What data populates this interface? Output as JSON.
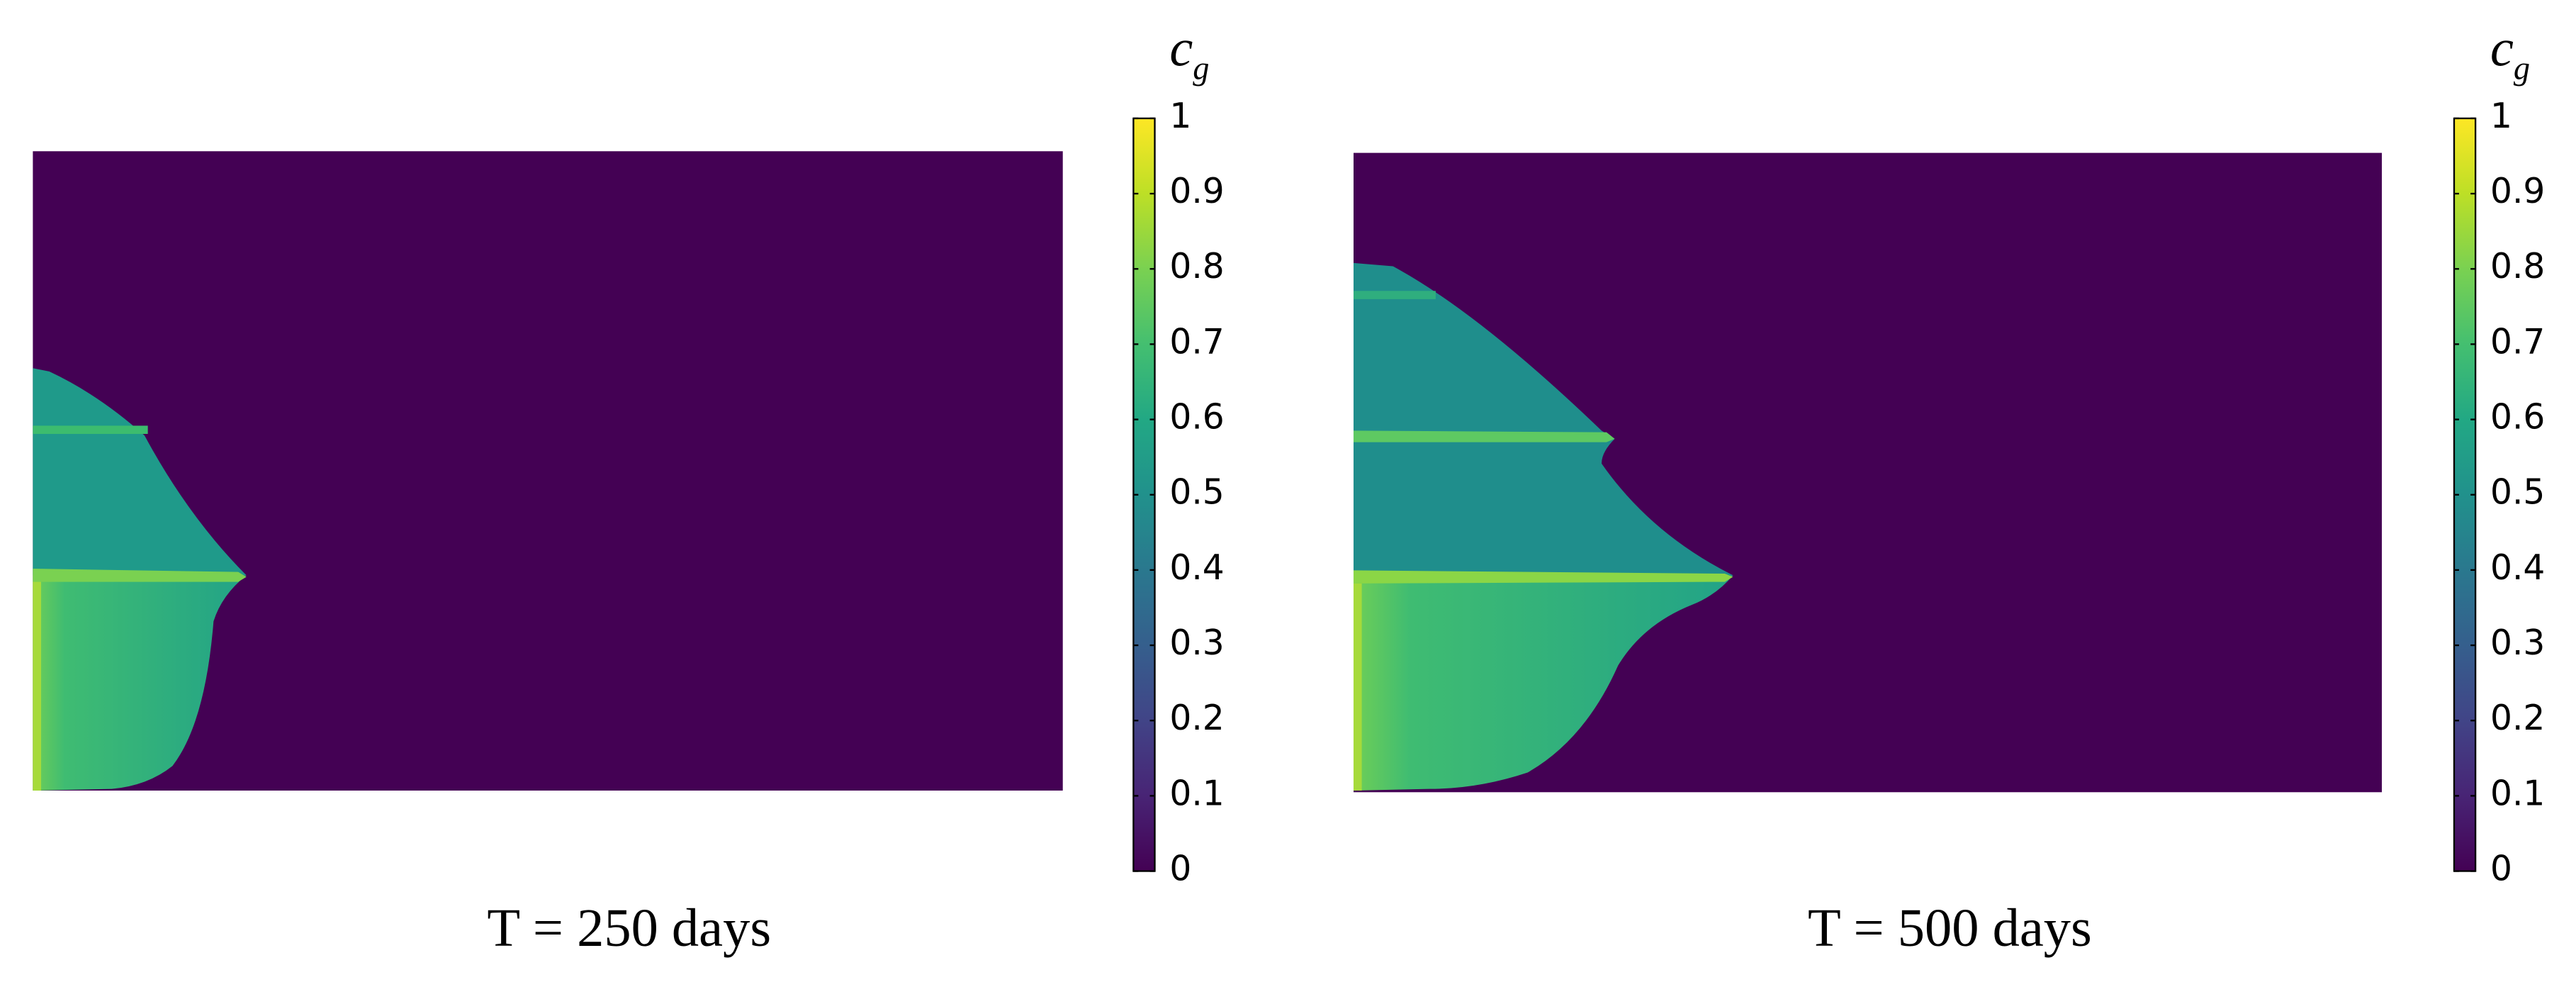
{
  "chart_data": [
    {
      "type": "heatmap",
      "title": "T = 250 days",
      "colorbar_label": "c",
      "colorbar_label_subscript": "g",
      "colormap": "viridis",
      "clim": [
        0,
        1
      ],
      "cticks": [
        0,
        0.1,
        0.2,
        0.3,
        0.4,
        0.5,
        0.6,
        0.7,
        0.8,
        0.9,
        1
      ]
    },
    {
      "type": "heatmap",
      "title": "T = 500 days",
      "colorbar_label": "c",
      "colorbar_label_subscript": "g",
      "colormap": "viridis",
      "clim": [
        0,
        1
      ],
      "cticks": [
        0,
        0.1,
        0.2,
        0.3,
        0.4,
        0.5,
        0.6,
        0.7,
        0.8,
        0.9,
        1
      ]
    }
  ]
}
